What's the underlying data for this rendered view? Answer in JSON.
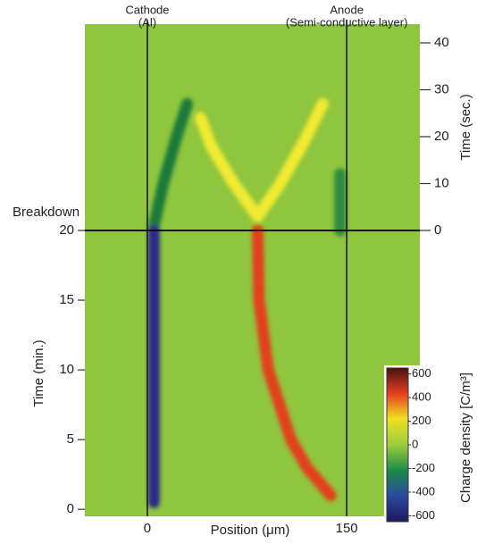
{
  "chart_data": {
    "type": "heatmap",
    "annotations": [
      "Cathode",
      "(Al)",
      "Anode",
      "(Semi-conductive layer)",
      "Breakdown"
    ],
    "xlabel": "Position (μm)",
    "xlim": [
      -47,
      205
    ],
    "xticks": [
      0,
      150
    ],
    "panels": [
      {
        "ylabel": "Time (sec.)",
        "ylim": [
          0,
          44
        ],
        "yticks": [
          0,
          10,
          20,
          30,
          40
        ],
        "series": [
          {
            "color": "#1a7a3a",
            "x": [
              5,
              12,
              22,
              30
            ],
            "values": [
              1,
              10,
              20,
              27
            ]
          },
          {
            "color": "#f2ea30",
            "x": [
              83,
              65,
              48,
              40
            ],
            "values": [
              3,
              10,
              18,
              24
            ]
          },
          {
            "color": "#f2ea30",
            "x": [
              83,
              100,
              118,
              132
            ],
            "values": [
              3,
              10,
              19,
              27
            ]
          },
          {
            "color": "#2f8a40",
            "x": [
              145,
              145
            ],
            "values": [
              0,
              12
            ]
          }
        ]
      },
      {
        "ylabel": "Time (min.)",
        "ylim": [
          -0.5,
          20
        ],
        "yticks": [
          0,
          5,
          10,
          15,
          20
        ],
        "series": [
          {
            "color": "#2a2a8a",
            "x": [
              5,
              5,
              5
            ],
            "values": [
              0.5,
              10,
              20
            ]
          },
          {
            "color": "#e3401f",
            "x": [
              138,
              120,
              108,
              91,
              84,
              83
            ],
            "values": [
              1,
              3,
              5,
              10,
              15,
              20
            ]
          }
        ]
      }
    ],
    "colorbar": {
      "label": "Charge density [C/m³]",
      "clim": [
        -650,
        650
      ],
      "ticks": [
        -600,
        -400,
        -200,
        0,
        200,
        400,
        600
      ]
    }
  }
}
